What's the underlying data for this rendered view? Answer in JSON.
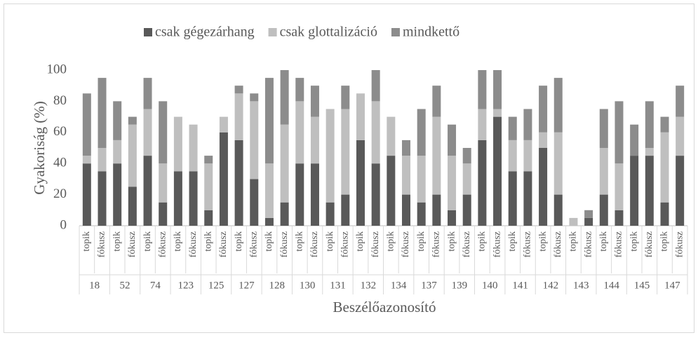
{
  "chart_data": {
    "type": "stacked_bar",
    "y_label": "Gyakoriság (%)",
    "x_label": "Beszélőazonosító",
    "groups": [
      "18",
      "52",
      "74",
      "123",
      "125",
      "127",
      "128",
      "130",
      "131",
      "132",
      "134",
      "137",
      "139",
      "140",
      "141",
      "142",
      "143",
      "144",
      "145",
      "147"
    ],
    "categories": [
      "topik",
      "fókusz",
      "topik",
      "fókusz",
      "topik",
      "fókusz",
      "topik",
      "fókusz",
      "topik",
      "fókusz",
      "topik",
      "fókusz",
      "topik",
      "fókusz",
      "topik",
      "fókusz",
      "topik",
      "fókusz",
      "topik",
      "fókusz",
      "topik",
      "fókusz",
      "topik",
      "fókusz",
      "topik",
      "fókusz",
      "topik",
      "fókusz",
      "topik",
      "fókusz",
      "topik",
      "fókusz",
      "topik",
      "fókusz",
      "topik",
      "fókusz",
      "topik",
      "fókusz",
      "topik",
      "fókusz"
    ],
    "series": [
      {
        "name": "csak gégezárhang",
        "color": "#595959",
        "values": [
          40,
          35,
          40,
          25,
          45,
          15,
          35,
          35,
          10,
          60,
          55,
          30,
          5,
          15,
          40,
          40,
          15,
          20,
          55,
          40,
          45,
          20,
          15,
          20,
          10,
          20,
          55,
          70,
          35,
          35,
          50,
          20,
          0,
          5,
          20,
          10,
          45,
          45,
          15,
          45
        ]
      },
      {
        "name": "csak glottalizáció",
        "color": "#bfbfbf",
        "values": [
          5,
          15,
          15,
          40,
          30,
          25,
          35,
          30,
          30,
          10,
          30,
          50,
          35,
          50,
          40,
          30,
          60,
          55,
          30,
          40,
          25,
          25,
          30,
          50,
          35,
          20,
          20,
          5,
          20,
          20,
          10,
          40,
          5,
          0,
          30,
          30,
          0,
          5,
          45,
          25
        ]
      },
      {
        "name": "mindkettő",
        "color": "#8c8c8c",
        "values": [
          40,
          45,
          25,
          5,
          20,
          40,
          0,
          0,
          5,
          0,
          5,
          5,
          55,
          35,
          15,
          20,
          0,
          15,
          0,
          20,
          0,
          10,
          30,
          20,
          20,
          10,
          25,
          25,
          15,
          20,
          30,
          35,
          0,
          5,
          25,
          40,
          20,
          30,
          10,
          20
        ]
      }
    ],
    "ylim": [
      0,
      100
    ],
    "yticks": [
      0,
      20,
      40,
      60,
      80,
      100
    ],
    "grid": false
  }
}
